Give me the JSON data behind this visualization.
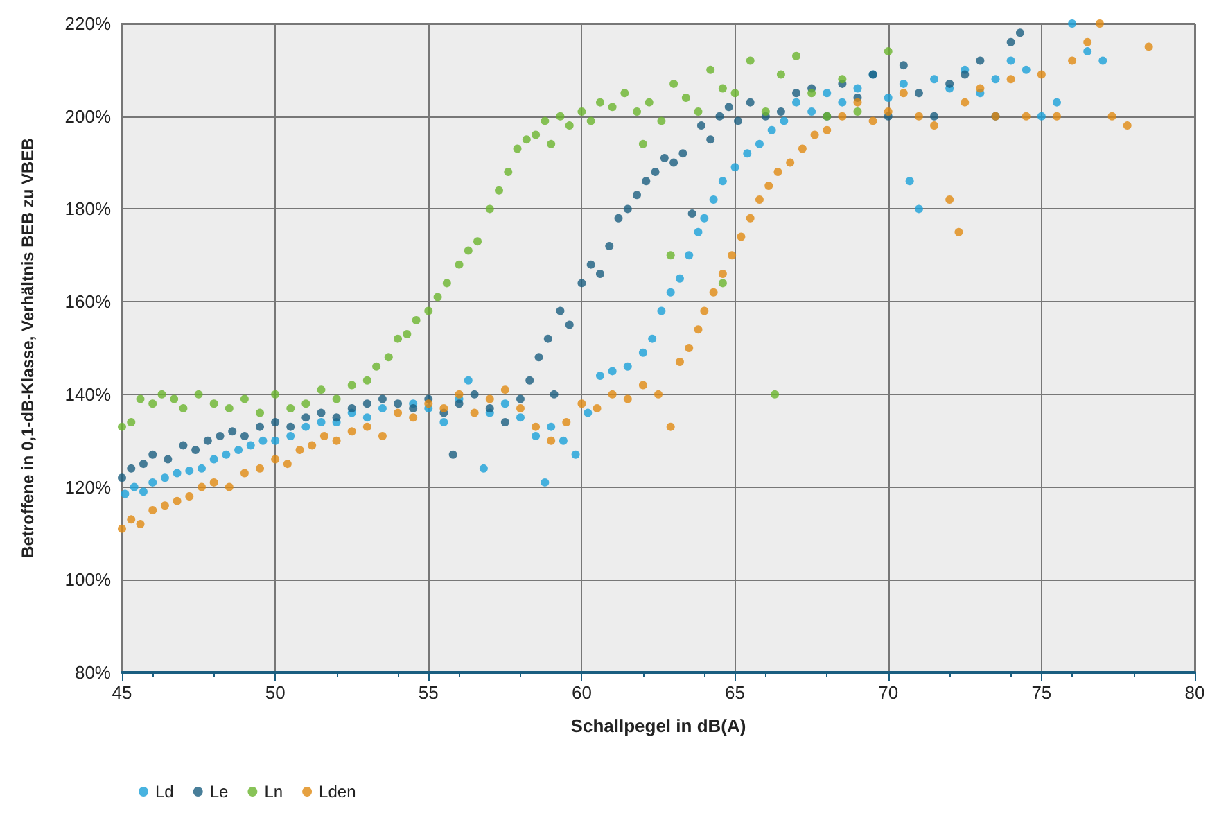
{
  "chart_data": {
    "type": "scatter",
    "xlabel": "Schallpegel in dB(A)",
    "ylabel": "Betroffene in 0,1-dB-Klasse, Verhältnis BEB zu VBEB",
    "xlim": [
      45,
      80
    ],
    "xticks": [
      45,
      50,
      55,
      60,
      65,
      70,
      75,
      80
    ],
    "ylim": [
      80,
      220
    ],
    "yticks": [
      {
        "value": 80,
        "label": "80%"
      },
      {
        "value": 100,
        "label": "100%"
      },
      {
        "value": 120,
        "label": "120%"
      },
      {
        "value": 140,
        "label": "140%"
      },
      {
        "value": 160,
        "label": "160%"
      },
      {
        "value": 180,
        "label": "180%"
      },
      {
        "value": 200,
        "label": "200%"
      },
      {
        "value": 220,
        "label": "220%"
      }
    ],
    "grid": true,
    "legend": "bottom left",
    "marker": "circle",
    "series": [
      {
        "name": "Ld",
        "color": "#1aa0d8",
        "x": [
          45.1,
          45.4,
          45.7,
          46.0,
          46.4,
          46.8,
          47.2,
          47.6,
          48.0,
          48.4,
          48.8,
          49.2,
          49.6,
          50.0,
          50.5,
          51.0,
          51.5,
          52.0,
          52.5,
          53.0,
          53.5,
          54.0,
          54.5,
          55.0,
          55.5,
          56.0,
          56.3,
          56.8,
          57.0,
          57.5,
          58.0,
          58.5,
          58.8,
          59.0,
          59.4,
          59.8,
          60.2,
          60.6,
          61.0,
          61.5,
          62.0,
          62.3,
          62.6,
          62.9,
          63.2,
          63.5,
          63.8,
          64.0,
          64.3,
          64.6,
          65.0,
          65.4,
          65.8,
          66.2,
          66.6,
          67.0,
          67.5,
          68.0,
          68.5,
          69.0,
          69.5,
          70.0,
          70.5,
          70.7,
          71.0,
          71.5,
          72.0,
          72.5,
          73.0,
          73.5,
          74.0,
          74.5,
          75.0,
          75.5,
          76.0,
          76.5,
          77.0
        ],
        "values": [
          118.5,
          120,
          119,
          121,
          122,
          123,
          123.5,
          124,
          126,
          127,
          128,
          129,
          130,
          130,
          131,
          133,
          134,
          134,
          136,
          135,
          137,
          null,
          138,
          137,
          134,
          139,
          143,
          124,
          136,
          138,
          135,
          131,
          121,
          133,
          130,
          127,
          136,
          144,
          145,
          146,
          149,
          152,
          158,
          162,
          165,
          170,
          175,
          178,
          182,
          186,
          189,
          192,
          194,
          197,
          199,
          203,
          201,
          205,
          203,
          206,
          209,
          204,
          207,
          186,
          180,
          208,
          206,
          210,
          205,
          208,
          212,
          210,
          200,
          203,
          220,
          214,
          212
        ]
      },
      {
        "name": "Le",
        "color": "#1a5e80",
        "x": [
          45.0,
          45.3,
          45.7,
          46.0,
          46.5,
          47.0,
          47.4,
          47.8,
          48.2,
          48.6,
          49.0,
          49.5,
          50.0,
          50.5,
          51.0,
          51.5,
          52.0,
          52.5,
          53.0,
          53.5,
          54.0,
          54.5,
          55.0,
          55.5,
          55.8,
          56.0,
          56.5,
          57.0,
          57.5,
          58.0,
          58.3,
          58.6,
          58.9,
          59.1,
          59.3,
          59.6,
          60.0,
          60.3,
          60.6,
          60.9,
          61.2,
          61.5,
          61.8,
          62.1,
          62.4,
          62.7,
          63.0,
          63.3,
          63.6,
          63.9,
          64.2,
          64.5,
          64.8,
          65.1,
          65.5,
          66.0,
          66.5,
          67.0,
          67.5,
          68.0,
          68.5,
          69.0,
          69.5,
          70.0,
          70.5,
          71.0,
          71.5,
          72.0,
          72.5,
          73.0,
          73.5,
          74.0,
          74.3
        ],
        "values": [
          122,
          124,
          125,
          127,
          126,
          129,
          128,
          130,
          131,
          132,
          131,
          133,
          134,
          133,
          135,
          136,
          135,
          137,
          138,
          139,
          138,
          137,
          139,
          136,
          127,
          138,
          140,
          137,
          134,
          139,
          143,
          148,
          152,
          140,
          158,
          155,
          164,
          168,
          166,
          172,
          178,
          180,
          183,
          186,
          188,
          191,
          190,
          192,
          179,
          198,
          195,
          200,
          202,
          199,
          203,
          200,
          201,
          205,
          206,
          200,
          207,
          204,
          209,
          200,
          211,
          205,
          200,
          207,
          209,
          212,
          200,
          216,
          218
        ]
      },
      {
        "name": "Ln",
        "color": "#6ab42d",
        "x": [
          45.0,
          45.3,
          45.6,
          46.0,
          46.3,
          46.7,
          47.0,
          47.5,
          48.0,
          48.5,
          49.0,
          49.5,
          50.0,
          50.5,
          51.0,
          51.5,
          52.0,
          52.5,
          53.0,
          53.3,
          53.7,
          54.0,
          54.3,
          54.6,
          55.0,
          55.3,
          55.6,
          56.0,
          56.3,
          56.6,
          57.0,
          57.3,
          57.6,
          57.9,
          58.2,
          58.5,
          58.8,
          59.0,
          59.3,
          59.6,
          60.0,
          60.3,
          60.6,
          61.0,
          61.4,
          61.8,
          62.0,
          62.2,
          62.6,
          62.9,
          63.0,
          63.4,
          63.8,
          64.2,
          64.6,
          64.6,
          65.0,
          65.5,
          66.0,
          66.3,
          66.5,
          67.0,
          67.5,
          68.0,
          68.5,
          69.0,
          70.0
        ],
        "values": [
          133,
          134,
          139,
          138,
          140,
          139,
          137,
          140,
          138,
          137,
          139,
          136,
          140,
          137,
          138,
          141,
          139,
          142,
          143,
          146,
          148,
          152,
          153,
          156,
          158,
          161,
          164,
          168,
          171,
          173,
          180,
          184,
          188,
          193,
          195,
          196,
          199,
          194,
          200,
          198,
          201,
          199,
          203,
          202,
          205,
          201,
          194,
          203,
          199,
          170,
          207,
          204,
          201,
          210,
          206,
          164,
          205,
          212,
          201,
          140,
          209,
          213,
          205,
          200,
          208,
          201,
          214
        ]
      },
      {
        "name": "Lden",
        "color": "#e08a12",
        "x": [
          45.0,
          45.3,
          45.6,
          46.0,
          46.4,
          46.8,
          47.2,
          47.6,
          48.0,
          48.5,
          49.0,
          49.5,
          50.0,
          50.4,
          50.8,
          51.2,
          51.6,
          52.0,
          52.5,
          53.0,
          53.5,
          54.0,
          54.5,
          55.0,
          55.5,
          56.0,
          56.5,
          57.0,
          57.5,
          58.0,
          58.5,
          59.0,
          59.5,
          60.0,
          60.5,
          61.0,
          61.5,
          62.0,
          62.5,
          62.9,
          63.2,
          63.5,
          63.8,
          64.0,
          64.3,
          64.6,
          64.9,
          65.2,
          65.5,
          65.8,
          66.1,
          66.4,
          66.8,
          67.2,
          67.6,
          68.0,
          68.5,
          69.0,
          69.5,
          70.0,
          70.5,
          71.0,
          71.5,
          72.0,
          72.3,
          72.5,
          73.0,
          73.5,
          74.0,
          74.5,
          75.0,
          75.5,
          76.0,
          76.5,
          76.9,
          77.3,
          77.8,
          78.5
        ],
        "values": [
          111,
          113,
          112,
          115,
          116,
          117,
          118,
          120,
          121,
          120,
          123,
          124,
          126,
          125,
          128,
          129,
          131,
          130,
          132,
          133,
          131,
          136,
          135,
          138,
          137,
          140,
          136,
          139,
          141,
          137,
          133,
          130,
          134,
          138,
          137,
          140,
          139,
          142,
          140,
          133,
          147,
          150,
          154,
          158,
          162,
          166,
          170,
          174,
          178,
          182,
          185,
          188,
          190,
          193,
          196,
          197,
          200,
          203,
          199,
          201,
          205,
          200,
          198,
          182,
          175,
          203,
          206,
          200,
          208,
          200,
          209,
          200,
          212,
          216,
          220,
          200,
          198,
          215
        ]
      }
    ]
  }
}
